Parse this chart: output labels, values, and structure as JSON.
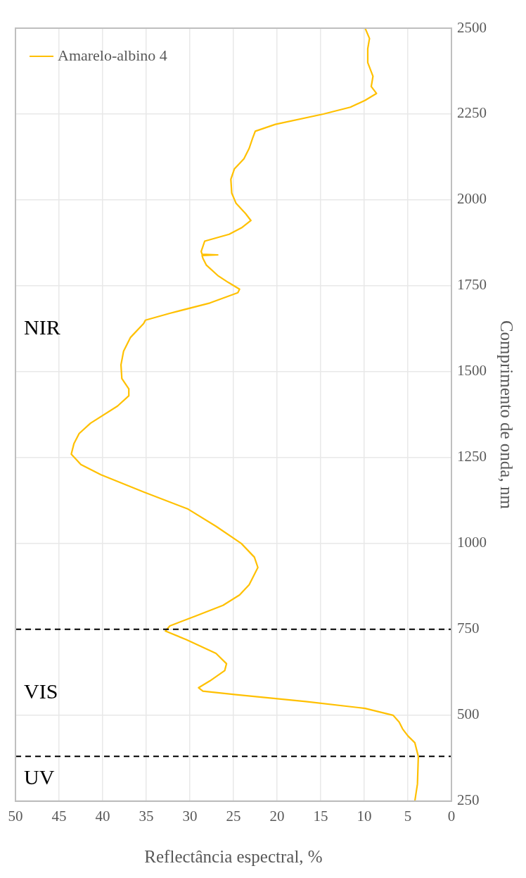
{
  "chart_data": {
    "type": "line",
    "xlabel": "Reflectância espectral, %",
    "ylabel": "Comprimento de onda, nm",
    "xlim": [
      50,
      0
    ],
    "xticks": [
      50,
      45,
      40,
      35,
      30,
      25,
      20,
      15,
      10,
      5,
      0
    ],
    "ylim": [
      250,
      2500
    ],
    "yticks": [
      250,
      500,
      750,
      1000,
      1250,
      1500,
      1750,
      2000,
      2250,
      2500
    ],
    "grid": true,
    "legend": "top left",
    "marker": "none",
    "line_style": "solid",
    "series": [
      {
        "name": "Amarelo-albino 4",
        "color": "#ffc000",
        "x": [
          4.2,
          3.9,
          3.8,
          4.2,
          5.0,
          5.6,
          6.0,
          6.7,
          9.9,
          16.7,
          24.7,
          28.5,
          29.0,
          27.7,
          26.0,
          25.8,
          27.0,
          30.4,
          32.8,
          32.3,
          29.2,
          26.2,
          24.3,
          23.2,
          22.8,
          22.2,
          22.6,
          24.1,
          27.0,
          30.2,
          35.3,
          40.2,
          42.5,
          43.6,
          43.3,
          42.7,
          41.4,
          38.3,
          37.0,
          37.0,
          37.8,
          37.9,
          37.6,
          36.8,
          35.3,
          35.1,
          32.3,
          27.7,
          24.5,
          24.3,
          25.6,
          26.8,
          28.1,
          28.5,
          28.6,
          26.8,
          28.6,
          28.7,
          28.3,
          25.5,
          24.0,
          23.0,
          23.6,
          24.7,
          25.2,
          25.3,
          24.9,
          23.8,
          23.2,
          22.8,
          22.5,
          20.2,
          14.7,
          11.6,
          9.9,
          8.6,
          9.2,
          9.0,
          9.6,
          9.6,
          9.4,
          9.9
        ],
        "values": [
          250,
          300,
          380,
          420,
          440,
          460,
          480,
          500,
          520,
          540,
          560,
          570,
          580,
          600,
          630,
          650,
          680,
          720,
          745,
          760,
          790,
          820,
          850,
          880,
          900,
          930,
          960,
          1000,
          1050,
          1100,
          1150,
          1200,
          1230,
          1260,
          1290,
          1320,
          1350,
          1400,
          1430,
          1450,
          1480,
          1520,
          1560,
          1600,
          1640,
          1650,
          1670,
          1700,
          1730,
          1740,
          1760,
          1780,
          1810,
          1830,
          1838,
          1840,
          1842,
          1850,
          1880,
          1900,
          1920,
          1940,
          1960,
          1990,
          2020,
          2060,
          2090,
          2120,
          2150,
          2180,
          2200,
          2220,
          2250,
          2270,
          2290,
          2310,
          2330,
          2360,
          2400,
          2440,
          2470,
          2500
        ]
      }
    ],
    "ref_lines": [
      {
        "axis": "y",
        "value": 380,
        "color": "#000000",
        "line_style": "dashed"
      },
      {
        "axis": "y",
        "value": 750,
        "color": "#000000",
        "line_style": "dashed"
      }
    ],
    "annotations": [
      "UV",
      "VIS",
      "NIR"
    ]
  }
}
